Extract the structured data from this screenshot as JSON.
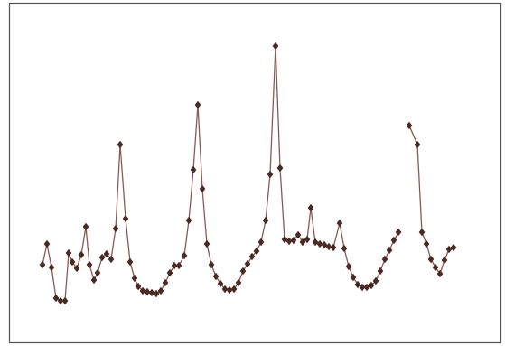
{
  "chart_data": {
    "type": "line",
    "color": "#4a2a22",
    "line_color": "#8a5a52",
    "xlim": [
      10,
      555
    ],
    "ylim": [
      0,
      377
    ],
    "x": [
      47,
      52,
      57,
      62,
      67,
      72,
      76,
      80,
      85,
      90,
      95,
      99,
      104,
      108,
      113,
      118,
      123,
      128,
      133,
      139,
      144,
      149,
      153,
      158,
      163,
      168,
      173,
      178,
      183,
      188,
      193,
      198,
      204,
      209,
      214,
      219,
      224,
      229,
      234,
      239,
      244,
      249,
      254,
      259,
      264,
      269,
      274,
      279,
      284,
      289,
      294,
      299,
      305,
      310,
      315,
      320,
      325,
      330,
      335,
      340,
      344,
      349,
      354,
      359,
      364,
      369,
      376,
      381,
      386,
      391,
      396,
      401,
      406,
      411,
      416,
      421,
      426,
      431,
      436,
      441,
      447,
      453,
      462,
      467,
      472,
      477,
      482,
      487,
      492,
      497,
      502
    ],
    "series": [
      {
        "values": [
          87,
          110,
          84,
          50,
          47,
          47,
          100,
          90,
          83,
          98,
          129,
          87,
          70,
          78,
          95,
          99,
          93,
          127,
          220,
          138,
          90,
          72,
          63,
          58,
          57,
          56,
          55,
          58,
          67,
          78,
          86,
          86,
          97,
          136,
          192,
          264,
          171,
          110,
          87,
          74,
          66,
          60,
          59,
          60,
          67,
          80,
          88,
          96,
          102,
          112,
          136,
          187,
          329,
          194,
          115,
          113,
          114,
          120,
          112,
          115,
          150,
          112,
          110,
          109,
          107,
          106,
          133,
          105,
          85,
          73,
          65,
          62,
          62,
          64,
          69,
          80,
          93,
          103,
          114,
          123,
          null,
          241,
          220,
          123,
          110,
          93,
          84,
          77,
          92,
          104,
          106
        ]
      }
    ]
  }
}
